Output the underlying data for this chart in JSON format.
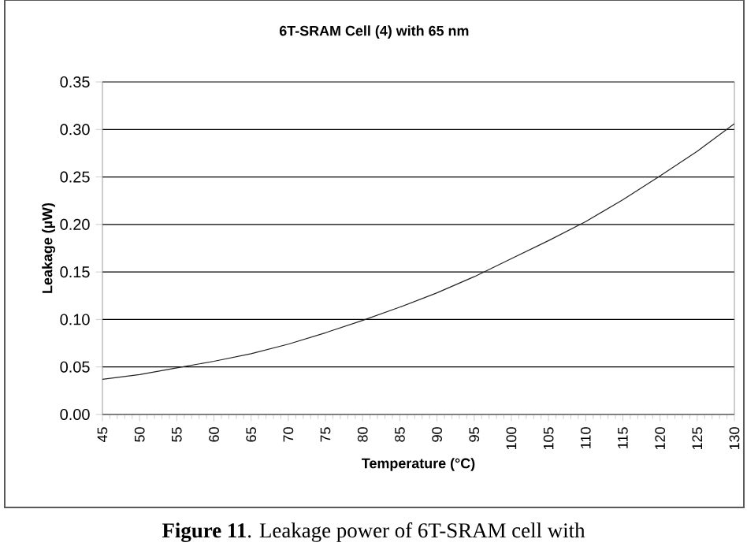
{
  "chart_data": {
    "type": "line",
    "title": "6T-SRAM Cell (4) with 65 nm",
    "xlabel": "Temperature (°C)",
    "ylabel": "Leakage (µW)",
    "x": [
      45,
      50,
      55,
      60,
      65,
      70,
      75,
      80,
      85,
      90,
      95,
      100,
      105,
      110,
      115,
      120,
      125,
      130
    ],
    "series": [
      {
        "color": "#222222",
        "values": [
          0.037,
          0.042,
          0.049,
          0.056,
          0.064,
          0.074,
          0.086,
          0.099,
          0.113,
          0.128,
          0.145,
          0.164,
          0.183,
          0.203,
          0.226,
          0.251,
          0.277,
          0.306
        ]
      }
    ],
    "xlim": [
      45,
      130
    ],
    "xticks": [
      45,
      50,
      55,
      60,
      65,
      70,
      75,
      80,
      85,
      90,
      95,
      100,
      105,
      110,
      115,
      120,
      125,
      130
    ],
    "ylim": [
      0,
      0.35
    ],
    "yticks": [
      {
        "value": 0,
        "label": "0.00"
      },
      {
        "value": 0.05,
        "label": "0.05"
      },
      {
        "value": 0.1,
        "label": "0.10"
      },
      {
        "value": 0.15,
        "label": "0.15"
      },
      {
        "value": 0.2,
        "label": "0.20"
      },
      {
        "value": 0.25,
        "label": "0.25"
      },
      {
        "value": 0.3,
        "label": "0.30"
      },
      {
        "value": 0.35,
        "label": "0.35"
      }
    ],
    "grid": "y",
    "marker": "none",
    "line_style": "solid",
    "annotations": [
      "**Figure 11**. Leakage power of 6T-SRAM cell with"
    ]
  }
}
